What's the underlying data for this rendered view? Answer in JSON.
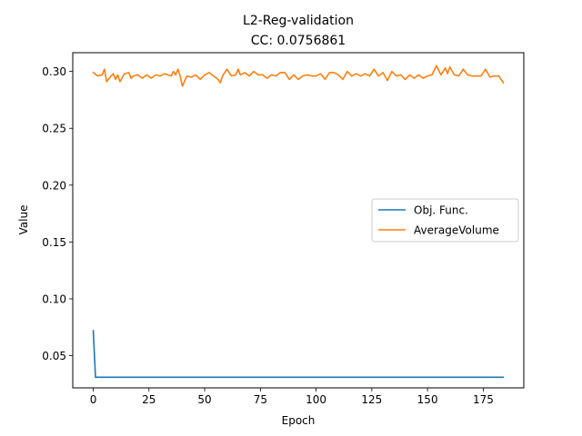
{
  "chart_data": {
    "type": "line",
    "title": "L2-Reg-validation",
    "subtitle": "CC: 0.0756861",
    "xlabel": "Epoch",
    "ylabel": "Value",
    "xlim": [
      -9.2,
      193.2
    ],
    "ylim": [
      0.0217,
      0.3165
    ],
    "x_ticks": [
      0,
      25,
      50,
      75,
      100,
      125,
      150,
      175
    ],
    "x_tick_labels": [
      "0",
      "25",
      "50",
      "75",
      "100",
      "125",
      "150",
      "175"
    ],
    "y_ticks": [
      0.05,
      0.1,
      0.15,
      0.2,
      0.25,
      0.3
    ],
    "y_tick_labels": [
      "0.05",
      "0.10",
      "0.15",
      "0.20",
      "0.25",
      "0.30"
    ],
    "grid": false,
    "legend_position": "center-right",
    "series": [
      {
        "name": "Obj. Func.",
        "color": "#1f77b4",
        "x": [
          0,
          1,
          184
        ],
        "values": [
          0.072,
          0.031,
          0.031
        ]
      },
      {
        "name": "AverageVolume",
        "color": "#ff7f0e",
        "x": [
          0,
          2,
          4,
          5,
          6,
          8,
          9,
          10,
          11,
          12,
          14,
          16,
          17,
          18,
          20,
          22,
          24,
          26,
          28,
          30,
          32,
          35,
          36,
          37,
          38,
          39,
          40,
          42,
          44,
          46,
          48,
          50,
          52,
          54,
          56,
          57,
          58,
          60,
          62,
          64,
          65,
          66,
          68,
          70,
          72,
          74,
          76,
          78,
          80,
          82,
          84,
          86,
          88,
          90,
          92,
          94,
          96,
          98,
          100,
          102,
          104,
          106,
          108,
          110,
          112,
          114,
          116,
          118,
          120,
          122,
          124,
          126,
          128,
          130,
          132,
          134,
          136,
          138,
          140,
          142,
          144,
          146,
          148,
          150,
          152,
          154,
          156,
          158,
          159,
          160,
          162,
          164,
          166,
          168,
          170,
          172,
          174,
          176,
          178,
          180,
          182,
          184
        ],
        "values": [
          0.299,
          0.296,
          0.297,
          0.302,
          0.291,
          0.296,
          0.298,
          0.293,
          0.297,
          0.291,
          0.298,
          0.299,
          0.294,
          0.296,
          0.297,
          0.294,
          0.297,
          0.294,
          0.297,
          0.296,
          0.298,
          0.296,
          0.3,
          0.297,
          0.302,
          0.296,
          0.287,
          0.296,
          0.295,
          0.297,
          0.293,
          0.297,
          0.299,
          0.296,
          0.293,
          0.29,
          0.296,
          0.302,
          0.296,
          0.297,
          0.302,
          0.297,
          0.299,
          0.296,
          0.3,
          0.297,
          0.297,
          0.294,
          0.297,
          0.296,
          0.299,
          0.299,
          0.293,
          0.297,
          0.293,
          0.296,
          0.297,
          0.296,
          0.296,
          0.298,
          0.293,
          0.299,
          0.299,
          0.297,
          0.293,
          0.3,
          0.296,
          0.298,
          0.296,
          0.298,
          0.296,
          0.302,
          0.296,
          0.299,
          0.292,
          0.3,
          0.296,
          0.297,
          0.293,
          0.297,
          0.294,
          0.297,
          0.294,
          0.296,
          0.297,
          0.305,
          0.297,
          0.303,
          0.298,
          0.304,
          0.297,
          0.296,
          0.302,
          0.297,
          0.296,
          0.296,
          0.296,
          0.302,
          0.295,
          0.296,
          0.296,
          0.29
        ]
      }
    ]
  }
}
